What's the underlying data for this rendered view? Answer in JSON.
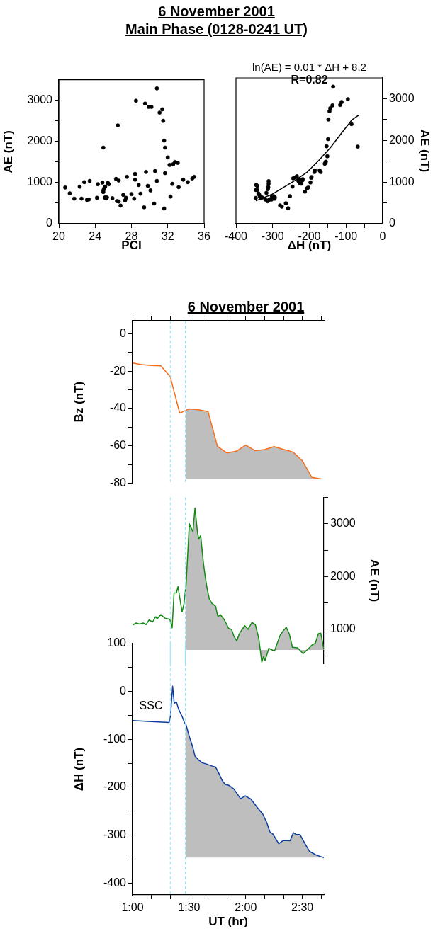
{
  "chart_data": [
    {
      "type": "scatter",
      "title": "6 November 2001",
      "subtitle": "Main Phase (0128-0241 UT)",
      "xlabel": "PCI",
      "ylabel": "AE (nT)",
      "marker": "circle",
      "color": "#000000",
      "x": [
        20.7,
        21.2,
        21.7,
        22.3,
        22.5,
        22.8,
        23.1,
        23.3,
        23.4,
        24.2,
        24.3,
        24.8,
        24.9,
        24.9,
        24.9,
        25.0,
        25.1,
        25.1,
        25.1,
        25.2,
        25.3,
        25.4,
        25.5,
        25.9,
        26.3,
        26.4,
        26.5,
        26.6,
        26.6,
        26.8,
        27.1,
        27.3,
        27.4,
        27.5,
        28.0,
        28.3,
        28.4,
        28.4,
        28.5,
        28.8,
        29.0,
        29.4,
        29.5,
        29.6,
        29.8,
        29.9,
        30.1,
        30.2,
        30.5,
        30.6,
        30.8,
        30.8,
        31.1,
        31.4,
        31.5,
        31.6,
        31.7,
        31.6,
        31.7,
        32.0,
        32.2,
        32.3,
        32.5,
        32.6,
        32.8,
        33.1,
        33.2,
        33.7,
        34.2,
        34.7,
        34.9
      ],
      "values": [
        880,
        740,
        610,
        900,
        610,
        1010,
        580,
        590,
        1040,
        630,
        960,
        1000,
        1850,
        770,
        810,
        860,
        640,
        900,
        630,
        620,
        640,
        990,
        960,
        620,
        1090,
        550,
        2390,
        1050,
        540,
        440,
        700,
        570,
        630,
        1140,
        720,
        610,
        1070,
        1210,
        2990,
        940,
        730,
        400,
        2920,
        1260,
        920,
        2840,
        810,
        2840,
        490,
        1280,
        1040,
        3290,
        2700,
        2780,
        2500,
        2020,
        1850,
        370,
        1230,
        1610,
        1430,
        660,
        970,
        1450,
        1500,
        1480,
        890,
        1070,
        1010,
        1100,
        1140
      ],
      "xlim": [
        20,
        36
      ],
      "xticks": [
        20,
        24,
        28,
        32,
        36
      ],
      "ylim": [
        0,
        3500
      ],
      "yticks": [
        0,
        {
          "value": 500,
          "label": null
        },
        1000,
        {
          "value": 1500,
          "label": null
        },
        2000,
        {
          "value": 2500,
          "label": null
        },
        3000
      ]
    },
    {
      "type": "scatter",
      "xlabel": "ΔH (nT)",
      "y2label": "AE (nT)",
      "annotations": [
        "ln(AE) = 0.01 * ΔH + 8.2",
        "R=0.82"
      ],
      "series": [
        {
          "type": "scatter",
          "color": "#000000",
          "marker": "circle",
          "axis": "y2",
          "x": [
            -346,
            -345,
            -342,
            -346,
            -342,
            -339,
            -337,
            -335,
            -332,
            -329,
            -320,
            -317,
            -314,
            -313,
            -312,
            -311,
            -311,
            -310,
            -307,
            -303,
            -302,
            -297,
            -295,
            -294,
            -280,
            -275,
            -264,
            -258,
            -253,
            -246,
            -244,
            -239,
            -234,
            -230,
            -227,
            -225,
            -222,
            -219,
            -218,
            -212,
            -206,
            -203,
            -197,
            -195,
            -194,
            -186,
            -185,
            -172,
            -169,
            -158,
            -156,
            -155,
            -153,
            -151,
            -149,
            -148,
            -145,
            -143,
            -137,
            -135,
            -116,
            -112,
            -95,
            -85,
            -68
          ],
          "values": [
            620,
            930,
            910,
            810,
            810,
            730,
            700,
            660,
            620,
            630,
            580,
            740,
            540,
            830,
            880,
            960,
            1020,
            570,
            590,
            580,
            660,
            660,
            600,
            630,
            440,
            410,
            490,
            370,
            660,
            890,
            1090,
            1110,
            1140,
            1030,
            1070,
            970,
            960,
            1040,
            1070,
            770,
            850,
            870,
            990,
            1100,
            1120,
            1240,
            1280,
            1280,
            1240,
            1440,
            1460,
            1490,
            1860,
            1620,
            2030,
            2500,
            2700,
            2770,
            2840,
            3290,
            2850,
            2920,
            2990,
            2390,
            1850
          ]
        },
        {
          "type": "line",
          "color": "#000000",
          "axis": "y2",
          "x": [
            -346,
            -303,
            -271,
            -239,
            -206,
            -174,
            -142,
            -110,
            -84,
            -66
          ],
          "values": [
            550,
            700,
            870,
            1040,
            1240,
            1520,
            1830,
            2200,
            2490,
            2600
          ]
        }
      ],
      "xlim": [
        -400,
        0
      ],
      "xticks": [
        -400,
        {
          "value": -350,
          "label": null
        },
        -300,
        {
          "value": -250,
          "label": null
        },
        -200,
        {
          "value": -150,
          "label": null
        },
        -100,
        {
          "value": -50,
          "label": null
        },
        0
      ],
      "y2lim": [
        0,
        3500
      ],
      "y2ticks": [
        0,
        {
          "value": 500,
          "label": null
        },
        1000,
        {
          "value": 1500,
          "label": null
        },
        2000,
        {
          "value": 2500,
          "label": null
        },
        3000
      ]
    },
    {
      "type": "line",
      "title": "6 November 2001",
      "ylabel": "Bz (nT)",
      "tick_labels": "y",
      "series": [
        {
          "type": "line",
          "color": "#f96d1c",
          "x": [
            1,
            1.0833,
            1.1667,
            1.25,
            1.3333,
            1.4167,
            1.4667,
            1.5,
            1.5833,
            1.6667,
            1.75,
            1.8333,
            1.9167,
            2,
            2.0833,
            2.1667,
            2.25,
            2.3333,
            2.4167,
            2.5,
            2.5833,
            2.6667
          ],
          "values": [
            -15.7,
            -16.5,
            -17,
            -17.2,
            -23,
            -42.5,
            -41.1,
            -40.2,
            -40.7,
            -41.6,
            -60.3,
            -63.8,
            -62.9,
            -59.6,
            -62.6,
            -62,
            -60.4,
            -61.9,
            -63.3,
            -68,
            -76.9,
            -77.8
          ],
          "lower": [
            null,
            null,
            null,
            null,
            null,
            null,
            -77.7,
            -77.7,
            -77.7,
            -77.7,
            -77.7,
            -77.7,
            -77.7,
            -77.7,
            -77.7,
            -77.7,
            -77.7,
            -77.7,
            -77.7,
            -77.7,
            -77.7,
            -77.7
          ],
          "upper": [
            null,
            null,
            null,
            null,
            null,
            null,
            -41.1,
            -40.2,
            -40.7,
            -41.6,
            -60.3,
            -63.8,
            -62.9,
            -59.6,
            -62.6,
            -62,
            -60.4,
            -61.9,
            -63.3,
            -68,
            -76.9,
            -77.8
          ]
        }
      ],
      "ref_lines": [
        {
          "axis": "x",
          "value": 1.3333,
          "color": "#80e8ff",
          "line_style": "dashed"
        },
        {
          "axis": "x",
          "value": 1.4667,
          "color": "#80e8ff",
          "line_style": "dashed"
        }
      ],
      "xlim": [
        1,
        2.69
      ],
      "xticks": [
        {
          "value": 1,
          "label": null
        },
        {
          "value": 1.1667,
          "label": null
        },
        {
          "value": 1.3333,
          "label": null
        },
        {
          "value": 1.5,
          "label": null
        },
        {
          "value": 1.6667,
          "label": null
        },
        {
          "value": 1.8333,
          "label": null
        },
        {
          "value": 2,
          "label": null
        },
        {
          "value": 2.1667,
          "label": null
        },
        {
          "value": 2.3333,
          "label": null
        },
        {
          "value": 2.5,
          "label": null
        },
        {
          "value": 2.6667,
          "label": null
        }
      ],
      "ylim": [
        -80,
        7
      ],
      "yticks": [
        0,
        {
          "value": -10,
          "label": null
        },
        -20,
        {
          "value": -30,
          "label": null
        },
        -40,
        {
          "value": -50,
          "label": null
        },
        -60,
        {
          "value": -70,
          "label": null
        },
        -80
      ]
    },
    {
      "type": "line",
      "y2label": "AE (nT)",
      "tick_labels": "y",
      "series": [
        {
          "type": "line",
          "color": "#138a13",
          "axis": "y2",
          "lower": [
            null,
            null,
            null,
            null,
            null,
            null,
            null,
            null,
            null,
            null,
            null,
            null,
            null,
            null,
            null,
            null,
            null,
            null,
            610,
            610,
            610,
            610,
            610,
            610,
            610,
            610,
            610,
            610,
            610,
            610,
            610,
            610,
            610,
            610,
            610,
            610,
            610,
            610,
            610,
            610,
            610,
            610,
            610,
            610,
            610,
            610,
            610,
            610,
            610,
            610,
            610,
            610,
            610,
            610,
            610,
            610,
            610,
            610,
            610,
            610,
            610,
            610,
            610,
            610
          ],
          "upper": [
            null,
            null,
            null,
            null,
            null,
            null,
            null,
            null,
            null,
            null,
            null,
            null,
            null,
            null,
            null,
            null,
            null,
            null,
            1730,
            1860,
            3000,
            2850,
            3300,
            2850,
            2710,
            2780,
            2280,
            2030,
            1780,
            1570,
            1490,
            1440,
            1240,
            1280,
            1190,
            1020,
            1000,
            870,
            780,
            910,
            1000,
            1070,
            1000,
            1130,
            1090,
            830,
            380,
            480,
            410,
            640,
            590,
            880,
            980,
            1040,
            910,
            660,
            650,
            540,
            630,
            700,
            740,
            920,
            930,
            620
          ],
          "x": [
            1.0,
            1.0317,
            1.0625,
            1.0933,
            1.1208,
            1.1458,
            1.1767,
            1.2042,
            1.2183,
            1.25,
            1.2875,
            1.3292,
            1.35,
            1.3667,
            1.3875,
            1.4017,
            1.4375,
            1.4542,
            1.4667,
            1.4733,
            1.5017,
            1.5333,
            1.5517,
            1.5733,
            1.585,
            1.6017,
            1.625,
            1.64,
            1.6583,
            1.6792,
            1.7017,
            1.7333,
            1.7542,
            1.775,
            1.8083,
            1.8483,
            1.875,
            1.8958,
            1.9208,
            1.9417,
            1.9683,
            1.9917,
            2.0208,
            2.0542,
            2.085,
            2.115,
            2.1417,
            2.1567,
            2.1708,
            2.2042,
            2.2542,
            2.3017,
            2.3333,
            2.3583,
            2.385,
            2.4125,
            2.4583,
            2.5067,
            2.5517,
            2.5833,
            2.615,
            2.6417,
            2.6625,
            2.69
          ],
          "values": [
            1080,
            1120,
            1100,
            1120,
            1090,
            1180,
            1140,
            1240,
            1200,
            1280,
            1210,
            1190,
            1030,
            1690,
            1690,
            1810,
            1330,
            1480,
            1730,
            1860,
            3000,
            2850,
            3300,
            2850,
            2710,
            2780,
            2280,
            2030,
            1780,
            1570,
            1490,
            1440,
            1240,
            1280,
            1190,
            1020,
            1000,
            870,
            780,
            910,
            1000,
            1070,
            1000,
            1130,
            1090,
            830,
            380,
            480,
            410,
            640,
            590,
            880,
            980,
            1040,
            910,
            660,
            650,
            540,
            630,
            700,
            740,
            920,
            930,
            620
          ]
        }
      ],
      "ref_lines": [
        {
          "axis": "x",
          "value": 1.3333,
          "color": "#80e8ff",
          "line_style": "dashed"
        },
        {
          "axis": "x",
          "value": 1.4667,
          "color": "#80e8ff",
          "line_style": "dashed"
        }
      ],
      "xlim": [
        1,
        2.69
      ],
      "y2lim": [
        350,
        3500
      ],
      "y2ticks": [
        {
          "value": 500,
          "label": null
        },
        1000,
        {
          "value": 1500,
          "label": null
        },
        2000,
        {
          "value": 2500,
          "label": null
        },
        3000,
        {
          "value": 3500,
          "label": null
        }
      ]
    },
    {
      "type": "line",
      "xlabel": "UT (hr)",
      "ylabel": "ΔH (nT)",
      "annotations": [
        "SSC"
      ],
      "series": [
        {
          "type": "line",
          "color": "#0b3d9e",
          "lower": [
            null,
            null,
            null,
            null,
            null,
            null,
            null,
            null,
            null,
            null,
            -347,
            -347,
            -347,
            -347,
            -347,
            -347,
            -347,
            -347,
            -347,
            -347,
            -347,
            -347,
            -347,
            -347,
            -347,
            -347,
            -347,
            -347,
            -347,
            -347,
            -347,
            -347,
            -347,
            -347,
            -347,
            -347,
            -347,
            -347,
            -347,
            -347,
            -347,
            -347,
            -347
          ],
          "upper": [
            null,
            null,
            null,
            null,
            null,
            null,
            null,
            null,
            null,
            null,
            -68,
            -70,
            -93,
            -116,
            -135,
            -143,
            -149,
            -152,
            -156,
            -158,
            -175,
            -186,
            -194,
            -196,
            -204,
            -224,
            -218,
            -225,
            -243,
            -256,
            -275,
            -293,
            -298,
            -318,
            -311,
            -312,
            -295,
            -299,
            -299,
            -317,
            -334,
            -342,
            -347
          ],
          "x": [
            1.0,
            1.1667,
            1.3233,
            1.335,
            1.3542,
            1.3683,
            1.3875,
            1.4067,
            1.4375,
            1.4583,
            1.4667,
            1.4733,
            1.5,
            1.5317,
            1.5517,
            1.5833,
            1.615,
            1.6567,
            1.7042,
            1.7333,
            1.7708,
            1.7917,
            1.8167,
            1.85,
            1.8958,
            1.9542,
            1.9958,
            2.0458,
            2.1042,
            2.15,
            2.1875,
            2.2125,
            2.24,
            2.2917,
            2.3333,
            2.3917,
            2.4208,
            2.4483,
            2.4792,
            2.5208,
            2.5625,
            2.625,
            2.69
          ],
          "values": [
            -61,
            -63,
            -65,
            -52,
            11,
            -25,
            -22,
            -37,
            -52,
            -65,
            -68,
            -70,
            -93,
            -116,
            -135,
            -143,
            -149,
            -152,
            -156,
            -158,
            -175,
            -186,
            -194,
            -196,
            -204,
            -224,
            -218,
            -225,
            -243,
            -256,
            -275,
            -293,
            -298,
            -318,
            -311,
            -312,
            -295,
            -299,
            -299,
            -317,
            -334,
            -342,
            -347
          ]
        }
      ],
      "ref_lines": [
        {
          "axis": "x",
          "value": 1.3333,
          "color": "#80e8ff",
          "line_style": "dashed"
        },
        {
          "axis": "x",
          "value": 1.4667,
          "color": "#80e8ff",
          "line_style": "dashed"
        }
      ],
      "xlim": [
        1,
        2.69
      ],
      "xticks": [
        {
          "value": 1,
          "label": "1:00"
        },
        {
          "value": 1.1667,
          "label": null
        },
        {
          "value": 1.3333,
          "label": null
        },
        {
          "value": 1.5,
          "label": "1:30"
        },
        {
          "value": 1.6667,
          "label": null
        },
        {
          "value": 1.8333,
          "label": null
        },
        {
          "value": 2,
          "label": "2:00"
        },
        {
          "value": 2.1667,
          "label": null
        },
        {
          "value": 2.3333,
          "label": null
        },
        {
          "value": 2.5,
          "label": "2:30"
        },
        {
          "value": 2.6667,
          "label": null
        }
      ],
      "ylim": [
        -425,
        100
      ],
      "yticks": [
        100,
        {
          "value": 50,
          "label": null
        },
        0,
        {
          "value": -50,
          "label": null
        },
        -100,
        {
          "value": -150,
          "label": null
        },
        -200,
        {
          "value": -250,
          "label": null
        },
        -300,
        {
          "value": -350,
          "label": null
        },
        -400
      ]
    }
  ]
}
